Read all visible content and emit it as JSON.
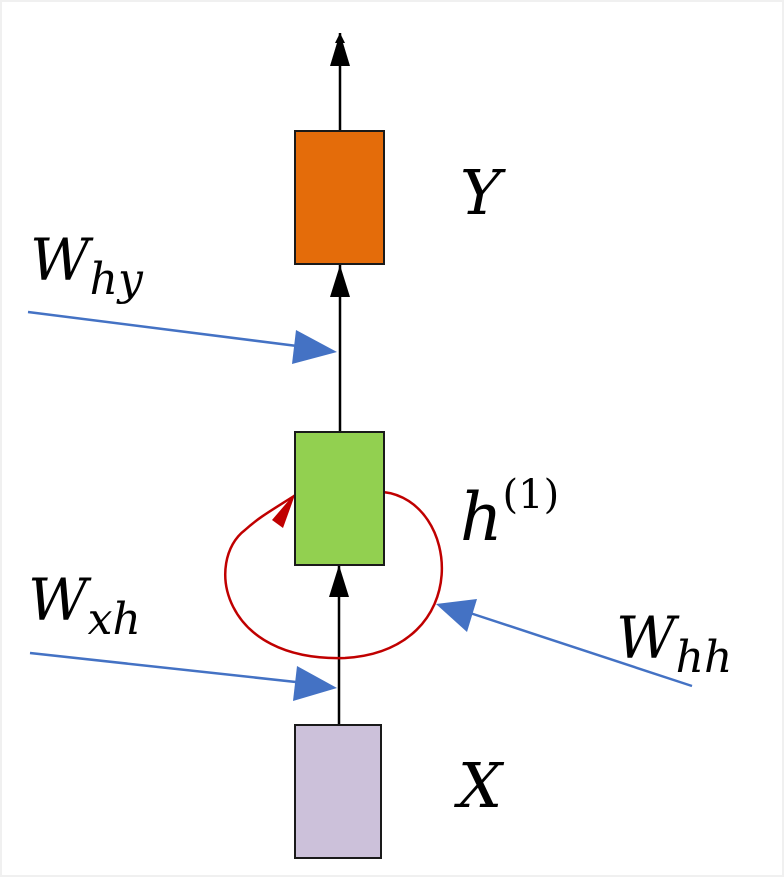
{
  "nodes": {
    "output": {
      "label": "Y",
      "color": "#E46C0A"
    },
    "hidden": {
      "label": "h",
      "superscript": "(1)",
      "color": "#92D050"
    },
    "input": {
      "label": "X",
      "color": "#CCC1DA"
    }
  },
  "weights": {
    "hy": {
      "main": "W",
      "sub": "hy"
    },
    "xh": {
      "main": "W",
      "sub": "xh"
    },
    "hh": {
      "main": "W",
      "sub": "hh"
    }
  },
  "colors": {
    "weight_arrow": "#4472C4",
    "recurrent_loop": "#C00000",
    "flow_arrow": "#000000",
    "border": "#F0F0F0"
  }
}
